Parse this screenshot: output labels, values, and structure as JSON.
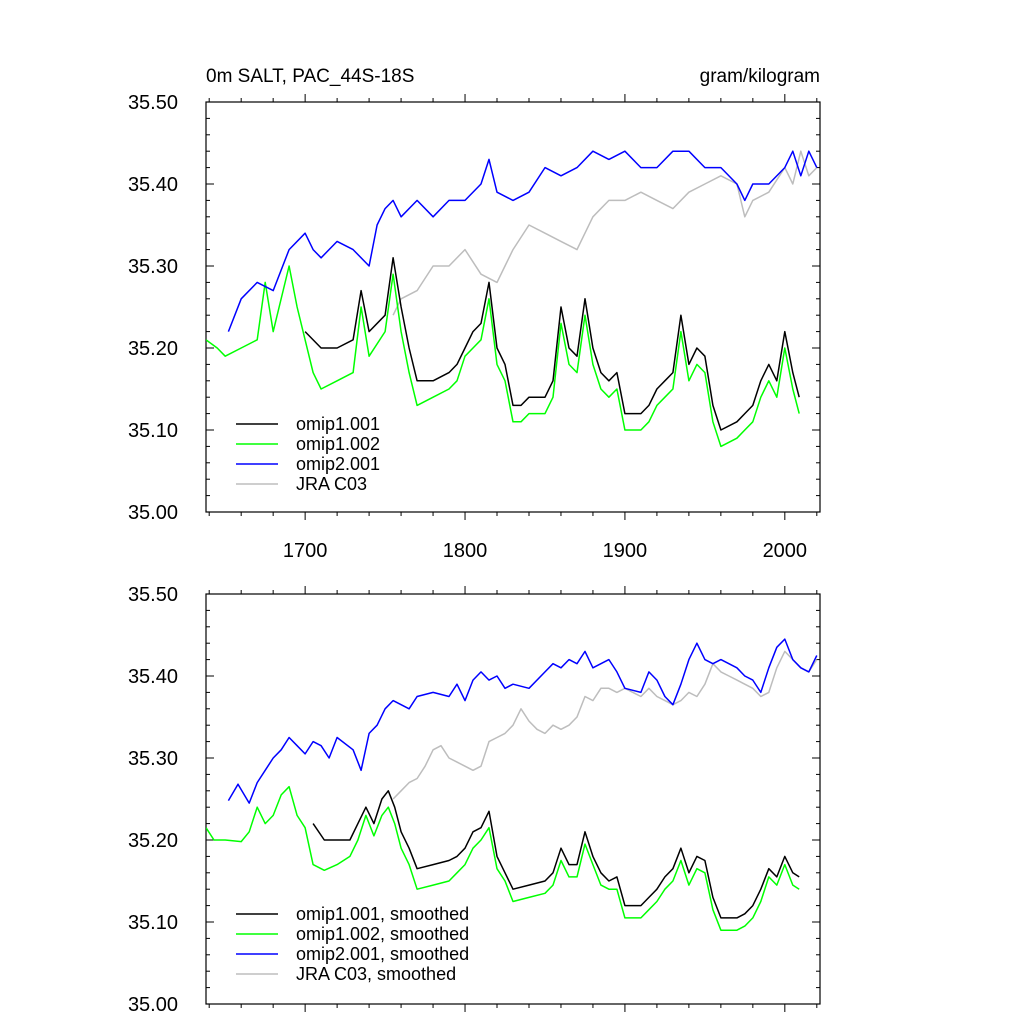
{
  "chart_data": [
    {
      "type": "line",
      "title": "0m SALT, PAC_44S-18S",
      "units": "gram/kilogram",
      "xlim": [
        1638,
        2022
      ],
      "ylim": [
        35.0,
        35.5
      ],
      "x_ticks": [
        1700,
        1800,
        1900,
        2000
      ],
      "x_tick_labels": [
        "1700",
        "1800",
        "1900",
        "2000"
      ],
      "y_ticks": [
        35.0,
        35.1,
        35.2,
        35.3,
        35.4,
        35.5
      ],
      "y_tick_labels": [
        "35.00",
        "35.10",
        "35.20",
        "35.30",
        "35.40",
        "35.50"
      ],
      "legend_position": "bottom-left",
      "series": [
        {
          "name": "omip1.001",
          "color": "#000000",
          "x": [
            1700,
            1710,
            1720,
            1730,
            1735,
            1740,
            1750,
            1755,
            1760,
            1765,
            1770,
            1780,
            1790,
            1795,
            1800,
            1805,
            1810,
            1815,
            1820,
            1825,
            1830,
            1835,
            1840,
            1850,
            1855,
            1860,
            1865,
            1870,
            1875,
            1880,
            1885,
            1890,
            1895,
            1900,
            1910,
            1915,
            1920,
            1925,
            1930,
            1935,
            1940,
            1945,
            1950,
            1955,
            1960,
            1970,
            1975,
            1980,
            1985,
            1990,
            1995,
            2000,
            2005,
            2009
          ],
          "y": [
            35.22,
            35.2,
            35.2,
            35.21,
            35.27,
            35.22,
            35.24,
            35.31,
            35.25,
            35.2,
            35.16,
            35.16,
            35.17,
            35.18,
            35.2,
            35.22,
            35.23,
            35.28,
            35.2,
            35.18,
            35.13,
            35.13,
            35.14,
            35.14,
            35.16,
            35.25,
            35.2,
            35.19,
            35.26,
            35.2,
            35.17,
            35.16,
            35.17,
            35.12,
            35.12,
            35.13,
            35.15,
            35.16,
            35.17,
            35.24,
            35.18,
            35.2,
            35.19,
            35.13,
            35.1,
            35.11,
            35.12,
            35.13,
            35.16,
            35.18,
            35.16,
            35.22,
            35.17,
            35.14
          ]
        },
        {
          "name": "omip1.002",
          "color": "#00ff00",
          "x": [
            1638,
            1645,
            1650,
            1660,
            1670,
            1675,
            1680,
            1690,
            1695,
            1700,
            1705,
            1710,
            1720,
            1730,
            1735,
            1740,
            1750,
            1755,
            1760,
            1765,
            1770,
            1780,
            1790,
            1795,
            1800,
            1805,
            1810,
            1815,
            1820,
            1825,
            1830,
            1835,
            1840,
            1850,
            1855,
            1860,
            1865,
            1870,
            1875,
            1880,
            1885,
            1890,
            1895,
            1900,
            1910,
            1915,
            1920,
            1925,
            1930,
            1935,
            1940,
            1945,
            1950,
            1955,
            1960,
            1970,
            1975,
            1980,
            1985,
            1990,
            1995,
            2000,
            2005,
            2009
          ],
          "y": [
            35.21,
            35.2,
            35.19,
            35.2,
            35.21,
            35.28,
            35.22,
            35.3,
            35.25,
            35.21,
            35.17,
            35.15,
            35.16,
            35.17,
            35.25,
            35.19,
            35.22,
            35.29,
            35.22,
            35.17,
            35.13,
            35.14,
            35.15,
            35.16,
            35.19,
            35.2,
            35.21,
            35.26,
            35.18,
            35.16,
            35.11,
            35.11,
            35.12,
            35.12,
            35.14,
            35.23,
            35.18,
            35.17,
            35.24,
            35.18,
            35.15,
            35.14,
            35.15,
            35.1,
            35.1,
            35.11,
            35.13,
            35.14,
            35.15,
            35.22,
            35.16,
            35.18,
            35.17,
            35.11,
            35.08,
            35.09,
            35.1,
            35.11,
            35.14,
            35.16,
            35.14,
            35.2,
            35.15,
            35.12
          ]
        },
        {
          "name": "omip2.001",
          "color": "#0000ff",
          "x": [
            1652,
            1660,
            1670,
            1680,
            1690,
            1700,
            1705,
            1710,
            1720,
            1730,
            1740,
            1745,
            1750,
            1755,
            1760,
            1770,
            1780,
            1790,
            1800,
            1810,
            1815,
            1820,
            1830,
            1840,
            1850,
            1860,
            1870,
            1880,
            1890,
            1900,
            1910,
            1920,
            1930,
            1940,
            1950,
            1960,
            1970,
            1975,
            1980,
            1990,
            2000,
            2005,
            2010,
            2015,
            2020
          ],
          "y": [
            35.22,
            35.26,
            35.28,
            35.27,
            35.32,
            35.34,
            35.32,
            35.31,
            35.33,
            35.32,
            35.3,
            35.35,
            35.37,
            35.38,
            35.36,
            35.38,
            35.36,
            35.38,
            35.38,
            35.4,
            35.43,
            35.39,
            35.38,
            35.39,
            35.42,
            35.41,
            35.42,
            35.44,
            35.43,
            35.44,
            35.42,
            35.42,
            35.44,
            35.44,
            35.42,
            35.42,
            35.4,
            35.38,
            35.4,
            35.4,
            35.42,
            35.44,
            35.41,
            35.44,
            35.42
          ]
        },
        {
          "name": "JRA C03",
          "color": "#bdbdbd",
          "x": [
            1755,
            1760,
            1770,
            1780,
            1790,
            1800,
            1810,
            1820,
            1825,
            1830,
            1840,
            1850,
            1860,
            1870,
            1880,
            1890,
            1900,
            1910,
            1920,
            1930,
            1940,
            1950,
            1960,
            1970,
            1975,
            1980,
            1990,
            2000,
            2005,
            2010,
            2015,
            2020
          ],
          "y": [
            35.24,
            35.26,
            35.27,
            35.3,
            35.3,
            35.32,
            35.29,
            35.28,
            35.3,
            35.32,
            35.35,
            35.34,
            35.33,
            35.32,
            35.36,
            35.38,
            35.38,
            35.39,
            35.38,
            35.37,
            35.39,
            35.4,
            35.41,
            35.4,
            35.36,
            35.38,
            35.39,
            35.42,
            35.4,
            35.44,
            35.41,
            35.42
          ]
        }
      ]
    },
    {
      "type": "line",
      "xlim": [
        1638,
        2022
      ],
      "ylim": [
        35.0,
        35.5
      ],
      "y_ticks": [
        35.0,
        35.1,
        35.2,
        35.3,
        35.4,
        35.5
      ],
      "y_tick_labels": [
        "35.00",
        "35.10",
        "35.20",
        "35.30",
        "35.40",
        "35.50"
      ],
      "x_ticks": [
        1700,
        1800,
        1900,
        2000
      ],
      "legend_position": "bottom-left",
      "series": [
        {
          "name": "omip1.001, smoothed",
          "color": "#000000",
          "x": [
            1705,
            1712,
            1720,
            1728,
            1733,
            1738,
            1743,
            1748,
            1752,
            1756,
            1760,
            1765,
            1770,
            1780,
            1790,
            1795,
            1800,
            1805,
            1810,
            1815,
            1820,
            1825,
            1830,
            1840,
            1850,
            1855,
            1860,
            1865,
            1870,
            1875,
            1880,
            1885,
            1890,
            1895,
            1900,
            1910,
            1915,
            1920,
            1925,
            1930,
            1935,
            1940,
            1945,
            1950,
            1955,
            1960,
            1970,
            1975,
            1980,
            1985,
            1990,
            1995,
            2000,
            2005,
            2009
          ],
          "y": [
            35.22,
            35.2,
            35.2,
            35.2,
            35.22,
            35.24,
            35.22,
            35.25,
            35.26,
            35.24,
            35.21,
            35.19,
            35.165,
            35.17,
            35.175,
            35.18,
            35.19,
            35.21,
            35.215,
            35.235,
            35.18,
            35.16,
            35.14,
            35.145,
            35.15,
            35.16,
            35.19,
            35.17,
            35.17,
            35.21,
            35.18,
            35.16,
            35.15,
            35.155,
            35.12,
            35.12,
            35.13,
            35.14,
            35.155,
            35.165,
            35.19,
            35.16,
            35.18,
            35.175,
            35.13,
            35.105,
            35.105,
            35.11,
            35.12,
            35.14,
            35.165,
            35.155,
            35.18,
            35.16,
            35.155
          ]
        },
        {
          "name": "omip1.002, smoothed",
          "color": "#00ff00",
          "x": [
            1638,
            1643,
            1650,
            1660,
            1665,
            1670,
            1675,
            1680,
            1685,
            1690,
            1695,
            1700,
            1705,
            1712,
            1720,
            1728,
            1733,
            1738,
            1743,
            1748,
            1752,
            1756,
            1760,
            1765,
            1770,
            1780,
            1790,
            1795,
            1800,
            1805,
            1810,
            1815,
            1820,
            1825,
            1830,
            1840,
            1850,
            1855,
            1860,
            1865,
            1870,
            1875,
            1880,
            1885,
            1890,
            1895,
            1900,
            1910,
            1915,
            1920,
            1925,
            1930,
            1935,
            1940,
            1945,
            1950,
            1955,
            1960,
            1970,
            1975,
            1980,
            1985,
            1990,
            1995,
            2000,
            2005,
            2009
          ],
          "y": [
            35.215,
            35.2,
            35.2,
            35.198,
            35.21,
            35.24,
            35.22,
            35.23,
            35.255,
            35.265,
            35.23,
            35.215,
            35.17,
            35.163,
            35.17,
            35.18,
            35.2,
            35.23,
            35.205,
            35.23,
            35.24,
            35.22,
            35.19,
            35.17,
            35.14,
            35.145,
            35.15,
            35.16,
            35.17,
            35.19,
            35.2,
            35.215,
            35.165,
            35.15,
            35.125,
            35.13,
            35.135,
            35.145,
            35.175,
            35.155,
            35.155,
            35.195,
            35.17,
            35.145,
            35.14,
            35.14,
            35.105,
            35.105,
            35.115,
            35.125,
            35.14,
            35.15,
            35.175,
            35.145,
            35.165,
            35.16,
            35.115,
            35.09,
            35.09,
            35.095,
            35.105,
            35.125,
            35.155,
            35.145,
            35.17,
            35.145,
            35.14
          ]
        },
        {
          "name": "omip2.001, smoothed",
          "color": "#0000ff",
          "x": [
            1652,
            1658,
            1665,
            1670,
            1675,
            1680,
            1685,
            1690,
            1695,
            1700,
            1705,
            1710,
            1715,
            1720,
            1730,
            1735,
            1740,
            1745,
            1750,
            1755,
            1760,
            1765,
            1770,
            1780,
            1790,
            1795,
            1800,
            1805,
            1810,
            1815,
            1820,
            1825,
            1830,
            1840,
            1850,
            1855,
            1860,
            1865,
            1870,
            1875,
            1880,
            1885,
            1890,
            1895,
            1900,
            1910,
            1915,
            1920,
            1925,
            1930,
            1935,
            1940,
            1945,
            1950,
            1955,
            1960,
            1970,
            1975,
            1980,
            1985,
            1990,
            1995,
            2000,
            2005,
            2010,
            2015,
            2020
          ],
          "y": [
            35.248,
            35.268,
            35.245,
            35.27,
            35.285,
            35.3,
            35.31,
            35.325,
            35.315,
            35.305,
            35.32,
            35.315,
            35.3,
            35.325,
            35.31,
            35.285,
            35.33,
            35.34,
            35.36,
            35.37,
            35.365,
            35.36,
            35.375,
            35.38,
            35.375,
            35.39,
            35.37,
            35.395,
            35.405,
            35.395,
            35.4,
            35.385,
            35.39,
            35.385,
            35.405,
            35.415,
            35.41,
            35.42,
            35.415,
            35.43,
            35.41,
            35.415,
            35.42,
            35.405,
            35.385,
            35.38,
            35.405,
            35.395,
            35.375,
            35.365,
            35.39,
            35.42,
            35.44,
            35.42,
            35.415,
            35.42,
            35.41,
            35.4,
            35.395,
            35.38,
            35.41,
            35.435,
            35.445,
            35.42,
            35.41,
            35.405,
            35.425
          ]
        },
        {
          "name": "JRA C03, smoothed",
          "color": "#bdbdbd",
          "x": [
            1755,
            1760,
            1765,
            1770,
            1775,
            1780,
            1785,
            1790,
            1795,
            1800,
            1805,
            1810,
            1815,
            1820,
            1825,
            1830,
            1835,
            1840,
            1845,
            1850,
            1855,
            1860,
            1865,
            1870,
            1875,
            1880,
            1885,
            1890,
            1895,
            1900,
            1905,
            1910,
            1915,
            1920,
            1925,
            1930,
            1935,
            1940,
            1945,
            1950,
            1955,
            1960,
            1965,
            1970,
            1975,
            1980,
            1985,
            1990,
            1995,
            2000,
            2005,
            2010,
            2015,
            2020
          ],
          "y": [
            35.25,
            35.26,
            35.27,
            35.275,
            35.29,
            35.31,
            35.315,
            35.3,
            35.295,
            35.29,
            35.285,
            35.29,
            35.32,
            35.325,
            35.33,
            35.34,
            35.36,
            35.345,
            35.335,
            35.33,
            35.34,
            35.335,
            35.34,
            35.35,
            35.375,
            35.37,
            35.385,
            35.385,
            35.38,
            35.385,
            35.38,
            35.375,
            35.385,
            35.375,
            35.37,
            35.365,
            35.37,
            35.38,
            35.375,
            35.39,
            35.415,
            35.405,
            35.4,
            35.395,
            35.39,
            35.385,
            35.375,
            35.38,
            35.41,
            35.43,
            35.42,
            35.41,
            35.405,
            35.42
          ]
        }
      ]
    }
  ]
}
